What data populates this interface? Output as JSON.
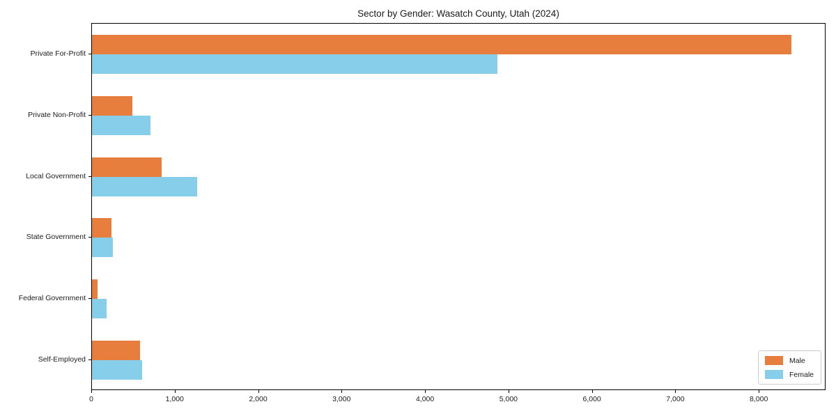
{
  "title": "Sector by Gender: Wasatch County, Utah (2024)",
  "chart_data": {
    "type": "bar",
    "orientation": "horizontal",
    "title": "Sector by Gender: Wasatch County, Utah (2024)",
    "categories": [
      "Private For-Profit",
      "Private Non-Profit",
      "Local Government",
      "State Government",
      "Federal Government",
      "Self-Employed"
    ],
    "series": [
      {
        "name": "Male",
        "color": "#e87e3e",
        "values": [
          8400,
          485,
          840,
          235,
          68,
          577
        ]
      },
      {
        "name": "Female",
        "color": "#87ceeb",
        "values": [
          4870,
          700,
          1260,
          250,
          175,
          602
        ]
      }
    ],
    "xlabel": "",
    "ylabel": "",
    "xlim": [
      0,
      8800
    ],
    "x_ticks": [
      0,
      1000,
      2000,
      3000,
      4000,
      5000,
      6000,
      7000,
      8000
    ],
    "x_tick_labels": [
      "0",
      "1,000",
      "2,000",
      "3,000",
      "4,000",
      "5,000",
      "6,000",
      "7,000",
      "8,000"
    ],
    "grid": false,
    "legend_position": "lower right"
  }
}
